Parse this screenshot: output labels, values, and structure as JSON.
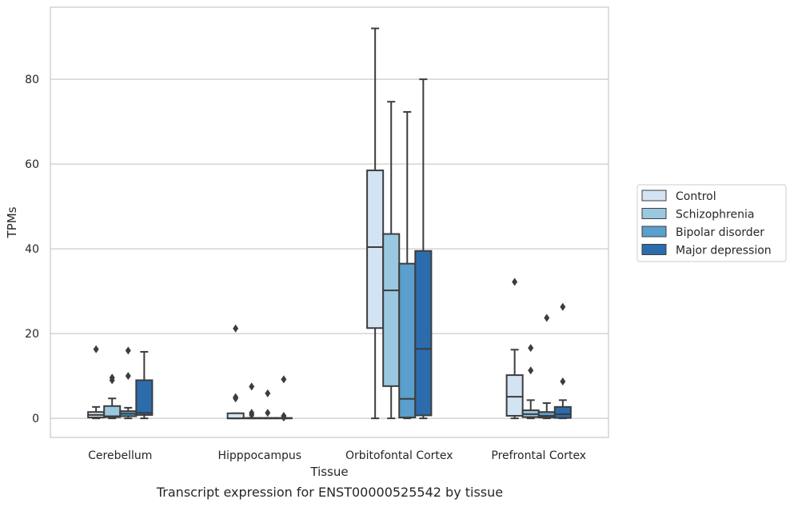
{
  "caption": "Transcript expression for ENST00000525542 by tissue",
  "chart_data": {
    "type": "box",
    "xlabel": "Tissue",
    "ylabel": "TPMs",
    "ylim": [
      -4.5,
      97
    ],
    "yticks": [
      0,
      20,
      40,
      60,
      80
    ],
    "categories": [
      "Cerebellum",
      "Hipppocampus",
      "Orbitofontal Cortex",
      "Prefrontal Cortex"
    ],
    "grid": "horizontal",
    "legend_position": "right",
    "series": [
      {
        "name": "Control",
        "color": "#d2e3f3",
        "boxes": [
          {
            "q1": 0.2,
            "median": 0.8,
            "q3": 1.5,
            "whisker_low": 0,
            "whisker_high": 2.7,
            "outliers": [
              16.3
            ]
          },
          {
            "q1": 0,
            "median": 0,
            "q3": 1.2,
            "whisker_low": 0,
            "whisker_high": 1.2,
            "outliers": [
              21.2,
              5.0,
              4.7
            ]
          },
          {
            "q1": 21.3,
            "median": 40.4,
            "q3": 58.5,
            "whisker_low": 0,
            "whisker_high": 92.0,
            "outliers": []
          },
          {
            "q1": 0.6,
            "median": 5.1,
            "q3": 10.2,
            "whisker_low": 0,
            "whisker_high": 16.2,
            "outliers": [
              32.2
            ]
          }
        ]
      },
      {
        "name": "Schizophrenia",
        "color": "#9ac8e1",
        "boxes": [
          {
            "q1": 0.3,
            "median": 0.5,
            "q3": 2.9,
            "whisker_low": 0,
            "whisker_high": 4.7,
            "outliers": [
              9.6,
              9.0
            ]
          },
          {
            "q1": 0,
            "median": 0,
            "q3": 0.1,
            "whisker_low": 0,
            "whisker_high": 0.1,
            "outliers": [
              7.5,
              1.3,
              0.8
            ]
          },
          {
            "q1": 7.6,
            "median": 30.2,
            "q3": 43.5,
            "whisker_low": 0,
            "whisker_high": 74.7,
            "outliers": []
          },
          {
            "q1": 0.3,
            "median": 1.0,
            "q3": 1.9,
            "whisker_low": 0,
            "whisker_high": 4.3,
            "outliers": [
              16.6,
              11.3
            ]
          }
        ]
      },
      {
        "name": "Bipolar disorder",
        "color": "#5a9fcd",
        "boxes": [
          {
            "q1": 0.5,
            "median": 1.1,
            "q3": 1.7,
            "whisker_low": 0,
            "whisker_high": 2.5,
            "outliers": [
              16.0,
              10.0
            ]
          },
          {
            "q1": 0,
            "median": 0,
            "q3": 0.1,
            "whisker_low": 0,
            "whisker_high": 0.1,
            "outliers": [
              5.9,
              1.3
            ]
          },
          {
            "q1": 0.2,
            "median": 4.6,
            "q3": 36.5,
            "whisker_low": 0,
            "whisker_high": 72.3,
            "outliers": []
          },
          {
            "q1": 0.2,
            "median": 0.6,
            "q3": 1.5,
            "whisker_low": 0,
            "whisker_high": 3.6,
            "outliers": [
              23.7
            ]
          }
        ]
      },
      {
        "name": "Major depression",
        "color": "#2c6cad",
        "boxes": [
          {
            "q1": 0.8,
            "median": 1.3,
            "q3": 9.0,
            "whisker_low": 0,
            "whisker_high": 15.7,
            "outliers": []
          },
          {
            "q1": 0,
            "median": 0,
            "q3": 0.1,
            "whisker_low": 0,
            "whisker_high": 0.1,
            "outliers": [
              9.2,
              0.6,
              0.2
            ]
          },
          {
            "q1": 0.7,
            "median": 16.4,
            "q3": 39.5,
            "whisker_low": 0,
            "whisker_high": 80.0,
            "outliers": []
          },
          {
            "q1": 0.1,
            "median": 1.0,
            "q3": 2.7,
            "whisker_low": 0,
            "whisker_high": 4.3,
            "outliers": [
              26.3,
              8.7
            ]
          }
        ]
      }
    ]
  }
}
